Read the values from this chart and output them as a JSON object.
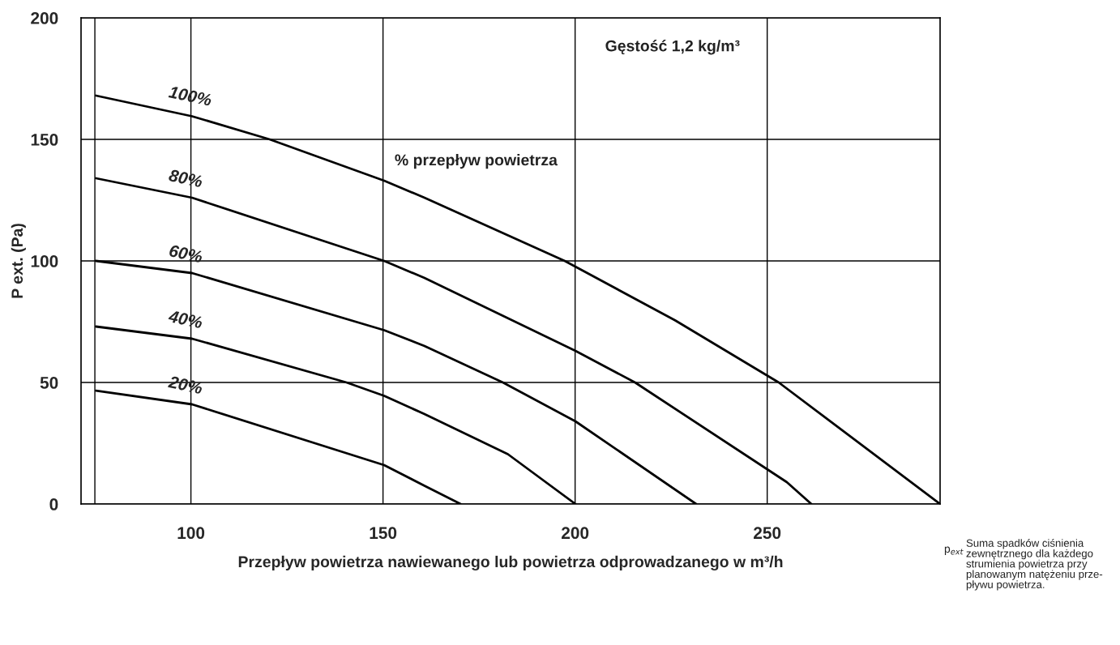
{
  "chart_data": {
    "type": "line",
    "xlabel": "Przepływ powietrza nawiewanego lub powietrza odprowadzanego w m³/h",
    "ylabel": "P ext. (Pa)",
    "xlim": [
      71.4,
      295
    ],
    "xticks": [
      {
        "value": 75,
        "label": null
      },
      100,
      150,
      200,
      250
    ],
    "ylim": [
      0,
      200
    ],
    "yticks": [
      0,
      50,
      100,
      150,
      200
    ],
    "grid": true,
    "legend": false,
    "marker": "none",
    "line_style": "solid",
    "series": [
      {
        "name": "100%",
        "color": "#000000",
        "x": [
          75.3,
          100.3,
          120.5,
          150.3,
          160.8,
          197.3,
          226,
          253,
          295
        ],
        "values": [
          168,
          159.5,
          150,
          133,
          126,
          100,
          75.6,
          50,
          0
        ]
      },
      {
        "name": "80%",
        "color": "#000000",
        "x": [
          75.3,
          100.3,
          150.3,
          160.8,
          200.1,
          215.6,
          255.1,
          261.5
        ],
        "values": [
          134,
          126,
          100,
          93,
          63,
          50,
          9,
          0
        ]
      },
      {
        "name": "60%",
        "color": "#000000",
        "x": [
          75.3,
          100.3,
          150.3,
          160.8,
          181.2,
          200.1,
          231.5
        ],
        "values": [
          100,
          95,
          71.5,
          65,
          50,
          34,
          0
        ]
      },
      {
        "name": "40%",
        "color": "#000000",
        "x": [
          75.3,
          100.3,
          140.5,
          150.3,
          160.8,
          182.5,
          200.1
        ],
        "values": [
          73,
          68,
          50,
          44.5,
          37,
          20.5,
          0
        ]
      },
      {
        "name": "20%",
        "color": "#000000",
        "x": [
          75.3,
          100.3,
          150.3,
          160.8,
          170.2
        ],
        "values": [
          46.6,
          41,
          16,
          7.5,
          0
        ]
      }
    ],
    "annotations": [
      "Gęstość 1,2 kg/m³",
      "% przepływ powietrza",
      "p$_{ext}$",
      "Suma spadków ciśnienia\nzewnętrznego dla każdego\nstrumienia powietrza przy\nplanowanym natężeniu prze-\npływu powietrza."
    ]
  }
}
